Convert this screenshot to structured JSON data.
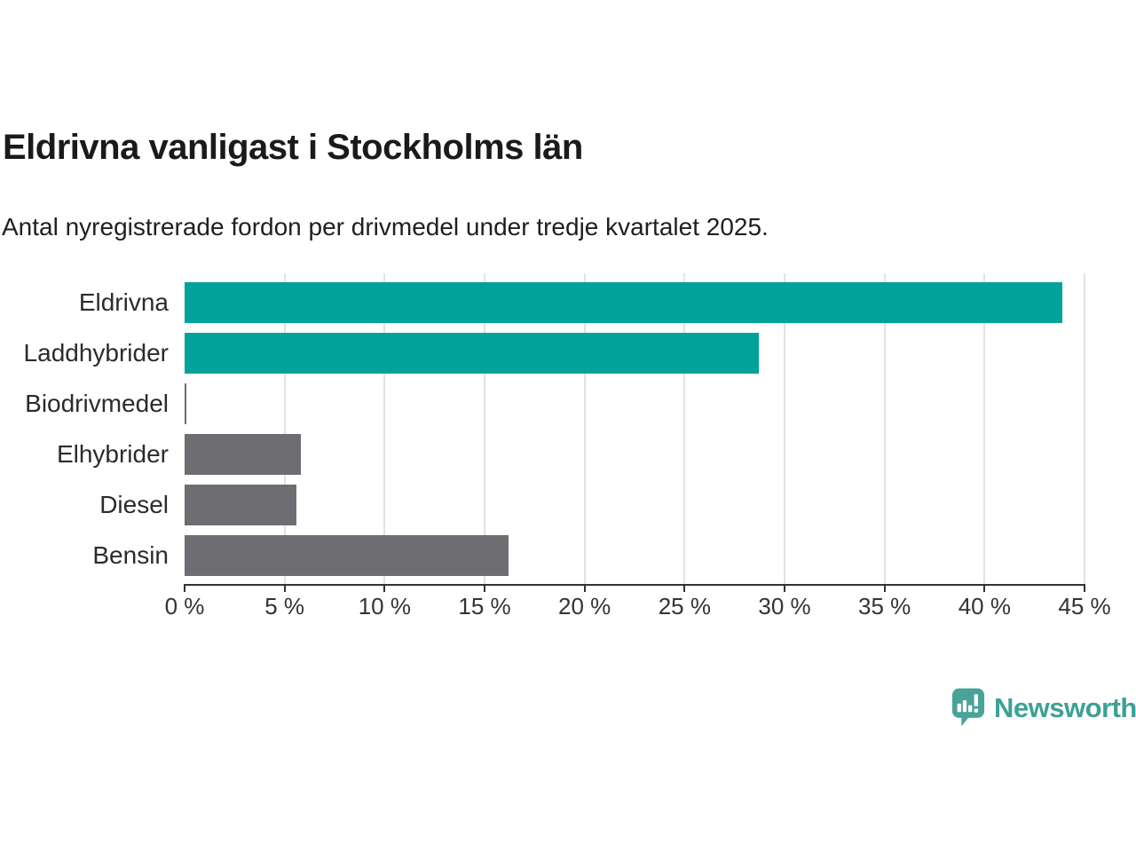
{
  "title": "Eldrivna vanligast i Stockholms län",
  "subtitle": "Antal nyregistrerade fordon per drivmedel under tredje kvartalet 2025.",
  "chart_data": {
    "type": "bar",
    "orientation": "horizontal",
    "title": "Eldrivna vanligast i Stockholms län",
    "subtitle": "Antal nyregistrerade fordon per drivmedel under tredje kvartalet 2025.",
    "categories": [
      "Eldrivna",
      "Laddhybrider",
      "Biodrivmedel",
      "Elhybrider",
      "Diesel",
      "Bensin"
    ],
    "values": [
      43.9,
      28.7,
      0.1,
      5.8,
      5.6,
      16.2
    ],
    "unit": "%",
    "bar_colors": [
      "#00a29a",
      "#00a29a",
      "#6d6d72",
      "#6d6d72",
      "#6d6d72",
      "#6d6d72"
    ],
    "xlabel": "",
    "ylabel": "",
    "xlim": [
      0,
      45
    ],
    "x_tick_values": [
      0,
      5,
      10,
      15,
      20,
      25,
      30,
      35,
      40,
      45
    ],
    "x_tick_labels": [
      "0 %",
      "5 %",
      "10 %",
      "15 %",
      "20 %",
      "25 %",
      "30 %",
      "35 %",
      "40 %",
      "45 %"
    ],
    "grid": "vertical-only",
    "legend": "none"
  },
  "branding": {
    "logo_text": "Newsworthy",
    "logo_icon": "newsworthy-speech-bubble-bar-chart-icon",
    "logo_color": "#3da096",
    "logo_icon_color": "#4aa39a"
  },
  "colors": {
    "accent_teal": "#00a29a",
    "bar_gray": "#6d6d72",
    "gridline": "#e2e2e2",
    "axis": "#333333",
    "title_text": "#1a1a1a"
  }
}
